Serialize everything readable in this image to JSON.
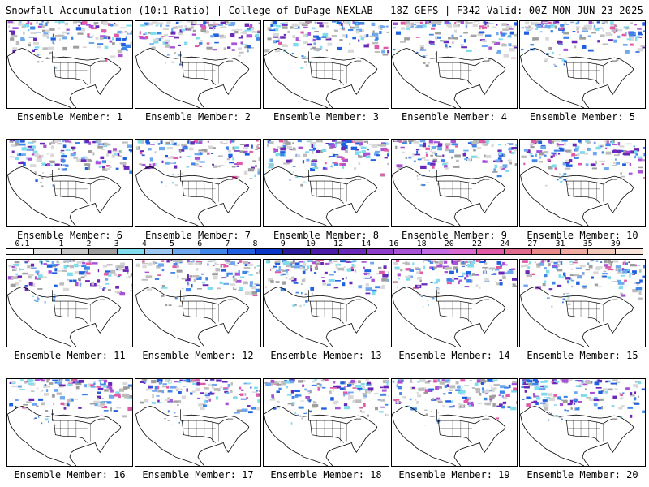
{
  "header": {
    "left": "Snowfall Accumulation (10:1 Ratio) | College of DuPage NEXLAB",
    "right": "18Z GEFS | F342 Valid: 00Z MON JUN 23 2025"
  },
  "panels": [
    {
      "label": "Ensemble Member: 1"
    },
    {
      "label": "Ensemble Member: 2"
    },
    {
      "label": "Ensemble Member: 3"
    },
    {
      "label": "Ensemble Member: 4"
    },
    {
      "label": "Ensemble Member: 5"
    },
    {
      "label": "Ensemble Member: 6"
    },
    {
      "label": "Ensemble Member: 7"
    },
    {
      "label": "Ensemble Member: 8"
    },
    {
      "label": "Ensemble Member: 9"
    },
    {
      "label": "Ensemble Member: 10"
    },
    {
      "label": "Ensemble Member: 11"
    },
    {
      "label": "Ensemble Member: 12"
    },
    {
      "label": "Ensemble Member: 13"
    },
    {
      "label": "Ensemble Member: 14"
    },
    {
      "label": "Ensemble Member: 15"
    },
    {
      "label": "Ensemble Member: 16"
    },
    {
      "label": "Ensemble Member: 17"
    },
    {
      "label": "Ensemble Member: 18"
    },
    {
      "label": "Ensemble Member: 19"
    },
    {
      "label": "Ensemble Member: 20"
    }
  ],
  "colorbar": {
    "ticks": [
      "0.1",
      "1",
      "2",
      "3",
      "4",
      "5",
      "6",
      "7",
      "8",
      "9",
      "10",
      "12",
      "14",
      "16",
      "18",
      "20",
      "22",
      "24",
      "27",
      "31",
      "35",
      "39"
    ],
    "colors": [
      "#ffffff",
      "#e4e4e4",
      "#c8c8c8",
      "#9e9e9e",
      "#7fdcec",
      "#9cc8f4",
      "#6ea8ee",
      "#3e86e8",
      "#1f5fe0",
      "#0a36c8",
      "#2a1a9c",
      "#4a1aa8",
      "#6a28b8",
      "#8c3cc8",
      "#a852d6",
      "#c46ae2",
      "#d86ad0",
      "#e05aa8",
      "#e06a8c",
      "#e88a8a",
      "#f0aaa0",
      "#f4c8b8",
      "#f8e4d8"
    ]
  }
}
